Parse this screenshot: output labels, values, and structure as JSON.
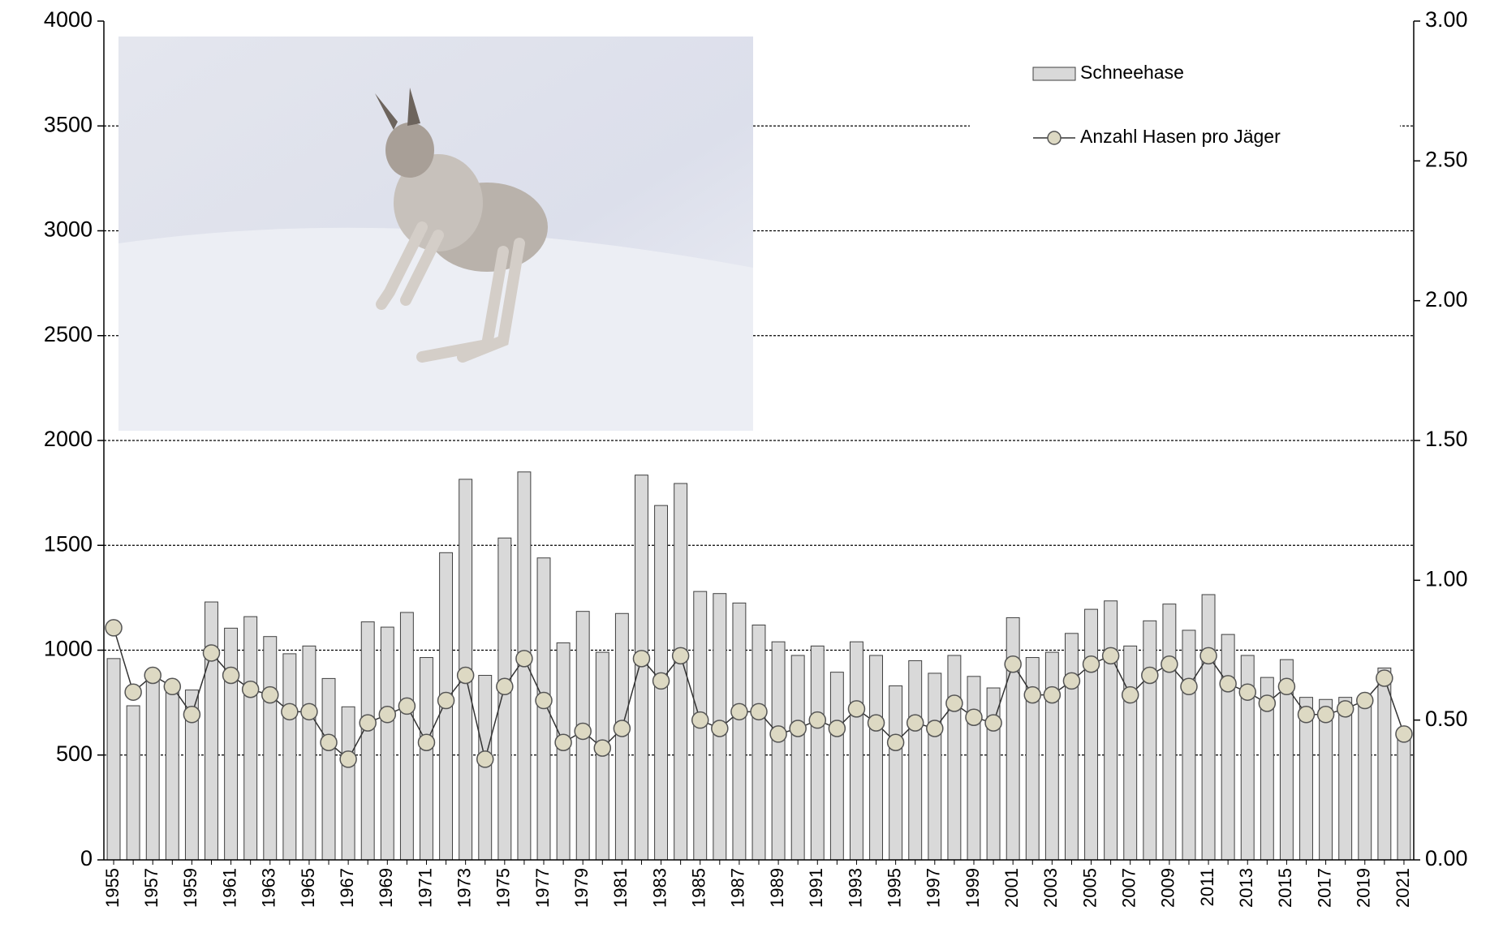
{
  "chart_data": {
    "type": "bar",
    "categories": [
      "1955",
      null,
      "1957",
      null,
      "1959",
      null,
      "1961",
      null,
      "1963",
      null,
      "1965",
      null,
      "1967",
      null,
      "1969",
      null,
      "1971",
      null,
      "1973",
      null,
      "1975",
      null,
      "1977",
      null,
      "1979",
      null,
      "1981",
      null,
      "1983",
      null,
      "1985",
      null,
      "1987",
      null,
      "1989",
      null,
      "1991",
      null,
      "1993",
      null,
      "1995",
      null,
      "1997",
      null,
      "1999",
      null,
      "2001",
      null,
      "2003",
      null,
      "2005",
      null,
      "2007",
      null,
      "2009",
      null,
      "2011",
      null,
      "2013",
      null,
      "2015",
      null,
      "2017",
      null,
      "2019",
      null,
      "2021"
    ],
    "series": [
      {
        "name": "Schneehase",
        "type": "bar",
        "color": "#d9d9d9",
        "values": [
          960,
          735,
          880,
          800,
          810,
          1230,
          1105,
          1160,
          1065,
          983,
          1020,
          865,
          730,
          1135,
          1110,
          1180,
          965,
          1465,
          1815,
          880,
          1535,
          1850,
          1440,
          1035,
          1185,
          990,
          1175,
          1835,
          1690,
          1795,
          1280,
          1270,
          1225,
          1120,
          1040,
          975,
          1020,
          895,
          1040,
          975,
          830,
          950,
          890,
          975,
          875,
          820,
          1155,
          965,
          990,
          1080,
          1195,
          1235,
          1020,
          1140,
          1220,
          1095,
          1265,
          1075,
          975,
          870,
          955,
          775,
          765,
          775,
          770,
          915,
          600
        ]
      },
      {
        "name": "Anzahl Hasen pro Jäger",
        "type": "line",
        "axis": "y2",
        "color": "#ddd9c3",
        "values": [
          0.83,
          0.6,
          0.66,
          0.62,
          0.52,
          0.74,
          0.66,
          0.61,
          0.59,
          0.53,
          0.53,
          0.42,
          0.36,
          0.49,
          0.52,
          0.55,
          0.42,
          0.57,
          0.66,
          0.36,
          0.62,
          0.72,
          0.57,
          0.42,
          0.46,
          0.4,
          0.47,
          0.72,
          0.64,
          0.73,
          0.5,
          0.47,
          0.53,
          0.53,
          0.45,
          0.47,
          0.5,
          0.47,
          0.54,
          0.49,
          0.42,
          0.49,
          0.47,
          0.56,
          0.51,
          0.49,
          0.7,
          0.59,
          0.59,
          0.64,
          0.7,
          0.73,
          0.59,
          0.66,
          0.7,
          0.62,
          0.73,
          0.63,
          0.6,
          0.56,
          0.62,
          0.52,
          0.52,
          0.54,
          0.57,
          0.65,
          0.45
        ]
      }
    ],
    "ylim": [
      0,
      4000
    ],
    "yticks": [
      0,
      500,
      1000,
      1500,
      2000,
      2500,
      3000,
      3500,
      4000
    ],
    "y2lim": [
      0,
      3
    ],
    "y2ticks": [
      {
        "value": 0,
        "label": "0.00"
      },
      {
        "value": 0.5,
        "label": "0.50"
      },
      {
        "value": 1,
        "label": "1.00"
      },
      {
        "value": 1.5,
        "label": "1.50"
      },
      {
        "value": 2,
        "label": "2.00"
      },
      {
        "value": 2.5,
        "label": "2.50"
      },
      {
        "value": 3,
        "label": "3.00"
      }
    ],
    "grid": true,
    "legend": "top-right"
  }
}
